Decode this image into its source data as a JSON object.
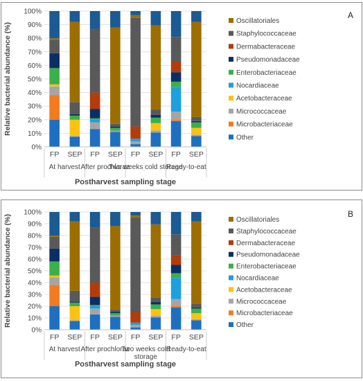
{
  "chart_data": [
    {
      "type": "bar",
      "stacked": true,
      "panel_label": "A",
      "ylabel": "Relative bacterial abundance (%)",
      "xlabel": "Postharvest sampling stage",
      "ylim": [
        0,
        100
      ],
      "yticks": [
        "0%",
        "10%",
        "20%",
        "30%",
        "40%",
        "50%",
        "60%",
        "70%",
        "80%",
        "90%",
        "100%"
      ],
      "categories": [
        "FP",
        "SEP",
        "FP",
        "SEP",
        "FP",
        "SEP",
        "FP",
        "SEP"
      ],
      "groups": [
        "At harvest",
        "After prochloraz",
        "Two weeks cold storage",
        "Ready-to-eat"
      ],
      "legend_position": "right",
      "series": [
        {
          "name": "Other",
          "color": "#1f6fc1",
          "values": [
            20,
            7.5,
            13,
            11,
            2,
            10.5,
            19,
            8
          ]
        },
        {
          "name": "Microbacteriaceae",
          "color": "#f47a20",
          "values": [
            18,
            0,
            0,
            0,
            0,
            0,
            1,
            0
          ]
        },
        {
          "name": "Micrococcaceae",
          "color": "#a5a5a5",
          "values": [
            6.5,
            0.5,
            5,
            1,
            2,
            1.5,
            6,
            1
          ]
        },
        {
          "name": "Acetobacteraceae",
          "color": "#fdc210",
          "values": [
            1.5,
            12,
            0,
            0,
            0,
            5.5,
            0,
            5
          ]
        },
        {
          "name": "Nocardiaceae",
          "color": "#1e9fe0",
          "values": [
            0,
            0,
            2,
            0,
            2,
            0,
            18,
            0
          ]
        },
        {
          "name": "Enterobacteriaceae",
          "color": "#3ab04a",
          "values": [
            12,
            3,
            1,
            2,
            0,
            4,
            4,
            4
          ]
        },
        {
          "name": "Pseudomonadaceae",
          "color": "#0b2f64",
          "values": [
            11,
            1,
            7,
            1,
            0,
            2,
            7,
            1
          ]
        },
        {
          "name": "Dermabacteraceae",
          "color": "#b23c0c",
          "values": [
            0,
            0,
            12,
            0,
            9,
            0,
            8,
            0
          ]
        },
        {
          "name": "Staphylococcaceae",
          "color": "#595959",
          "values": [
            10,
            9,
            47,
            2,
            80,
            4,
            18,
            3
          ]
        },
        {
          "name": "Oscillatoriales",
          "color": "#9c6e00",
          "values": [
            1,
            59,
            0,
            71,
            2,
            62,
            0,
            70
          ]
        },
        {
          "name": "",
          "color": "#1b5a92",
          "values": [
            20,
            8,
            13,
            12,
            3,
            10.5,
            19,
            8
          ]
        }
      ]
    },
    {
      "type": "bar",
      "stacked": true,
      "panel_label": "B",
      "ylabel": "Relative bacterial abundance (%)",
      "xlabel": "Postharvest sampling stage",
      "ylim": [
        0,
        100
      ],
      "yticks": [
        "0%",
        "10%",
        "20%",
        "30%",
        "40%",
        "50%",
        "60%",
        "70%",
        "80%",
        "90%",
        "100%"
      ],
      "categories": [
        "FP",
        "SEP",
        "FP",
        "SEP",
        "FP",
        "SEP",
        "FP",
        "SEP"
      ],
      "groups": [
        "At harvest",
        "After prochloraz",
        "Two weeks cold\nstorage",
        "Ready-to-eat"
      ],
      "legend_position": "right",
      "series": [
        {
          "name": "Other",
          "color": "#1f6fc1",
          "values": [
            20,
            7.5,
            13,
            11,
            2,
            10.5,
            19,
            8
          ]
        },
        {
          "name": "Microbacteriaceae",
          "color": "#f47a20",
          "values": [
            18,
            0,
            0,
            0,
            0,
            0,
            1,
            0
          ]
        },
        {
          "name": "Micrococcaceae",
          "color": "#a5a5a5",
          "values": [
            6.5,
            0.5,
            5,
            1,
            2,
            1.5,
            6,
            1
          ]
        },
        {
          "name": "Acetobacteraceae",
          "color": "#fdc210",
          "values": [
            1.5,
            12,
            0,
            0,
            0,
            5.5,
            0,
            5
          ]
        },
        {
          "name": "Nocardiaceae",
          "color": "#1e9fe0",
          "values": [
            0,
            0,
            2,
            0,
            2,
            0,
            18,
            0
          ]
        },
        {
          "name": "Enterobacteriaceae",
          "color": "#3ab04a",
          "values": [
            12,
            3,
            1,
            2,
            0,
            4,
            4,
            4
          ]
        },
        {
          "name": "Pseudomonadaceae",
          "color": "#0b2f64",
          "values": [
            11,
            1,
            7,
            1,
            0,
            2,
            7,
            1
          ]
        },
        {
          "name": "Dermabacteraceae",
          "color": "#b23c0c",
          "values": [
            0,
            0,
            12,
            0,
            9,
            0,
            8,
            0
          ]
        },
        {
          "name": "Staphylococcaceae",
          "color": "#595959",
          "values": [
            10,
            9,
            47,
            2,
            80,
            4,
            18,
            3
          ]
        },
        {
          "name": "Oscillatoriales",
          "color": "#9c6e00",
          "values": [
            1,
            59,
            0,
            71,
            2,
            62,
            0,
            70
          ]
        },
        {
          "name": "",
          "color": "#1b5a92",
          "values": [
            20,
            8,
            13,
            12,
            3,
            10.5,
            19,
            8
          ]
        }
      ]
    }
  ]
}
